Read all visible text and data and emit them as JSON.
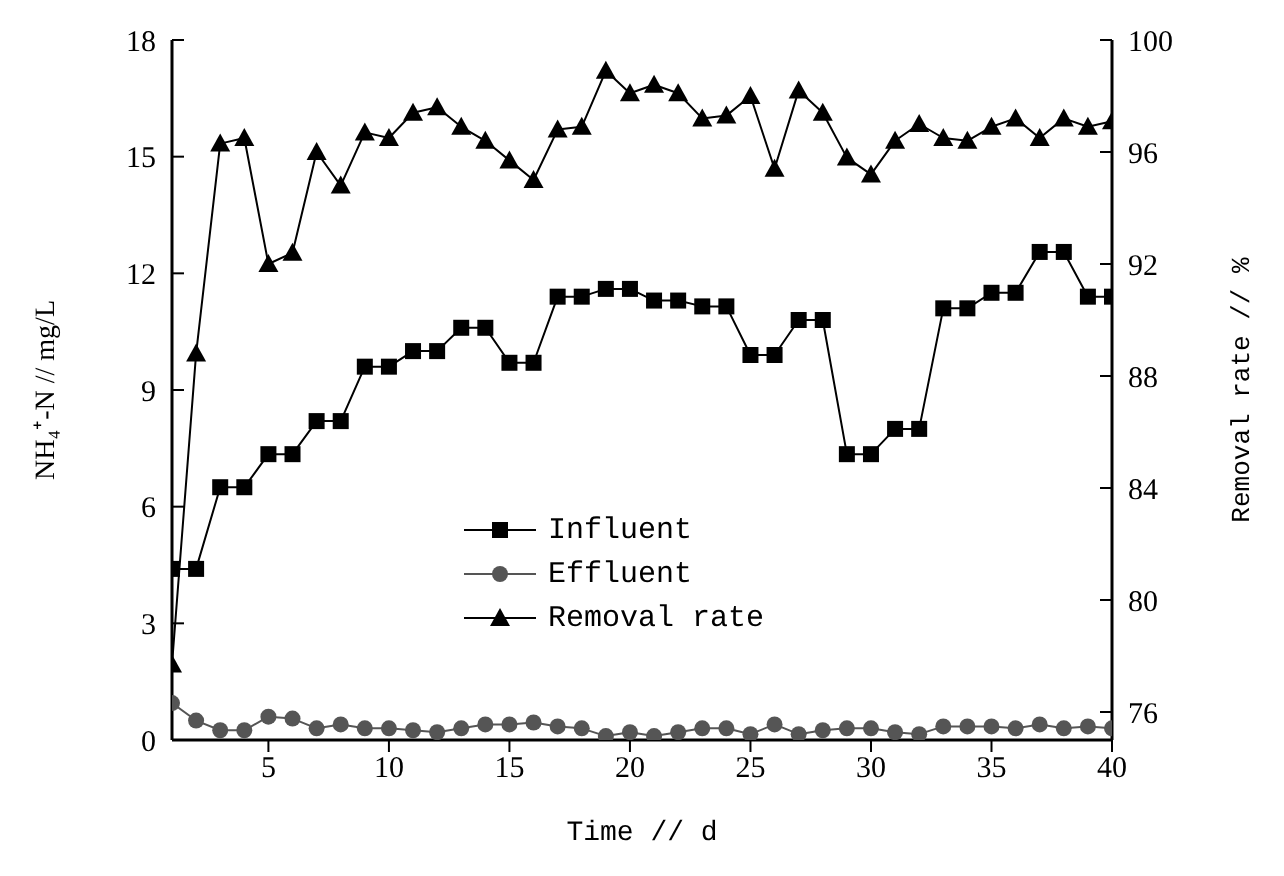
{
  "chart_data": {
    "type": "line",
    "xlabel": "Time // d",
    "ylabel": "NH₄⁺-N // mg/L",
    "y2label": "Removal rate // %",
    "x": [
      1,
      2,
      3,
      4,
      5,
      6,
      7,
      8,
      9,
      10,
      11,
      12,
      13,
      14,
      15,
      16,
      17,
      18,
      19,
      20,
      21,
      22,
      23,
      24,
      25,
      26,
      27,
      28,
      29,
      30,
      31,
      32,
      33,
      34,
      35,
      36,
      37,
      38,
      39,
      40
    ],
    "series": [
      {
        "name": "Influent",
        "color": "#000000",
        "marker": "square",
        "values": [
          4.4,
          4.4,
          6.5,
          6.5,
          7.35,
          7.35,
          8.2,
          8.2,
          9.6,
          9.6,
          10.0,
          10.0,
          10.6,
          10.6,
          9.7,
          9.7,
          11.4,
          11.4,
          11.6,
          11.6,
          11.3,
          11.3,
          11.15,
          11.15,
          9.9,
          9.9,
          10.8,
          10.8,
          7.35,
          7.35,
          8.0,
          8.0,
          11.1,
          11.1,
          11.5,
          11.5,
          12.55,
          12.55,
          11.4,
          11.4
        ]
      },
      {
        "name": "Effluent",
        "color": "#555555",
        "marker": "circle",
        "values": [
          0.95,
          0.5,
          0.25,
          0.25,
          0.6,
          0.55,
          0.3,
          0.4,
          0.3,
          0.3,
          0.25,
          0.2,
          0.3,
          0.4,
          0.4,
          0.45,
          0.35,
          0.3,
          0.1,
          0.2,
          0.1,
          0.2,
          0.3,
          0.3,
          0.15,
          0.4,
          0.15,
          0.25,
          0.3,
          0.3,
          0.2,
          0.15,
          0.35,
          0.35,
          0.35,
          0.3,
          0.4,
          0.3,
          0.35,
          0.3
        ]
      },
      {
        "name": "Removal rate",
        "color": "#000000",
        "marker": "triangle",
        "axis": "y2",
        "values": [
          77.7,
          88.8,
          96.3,
          96.5,
          92.0,
          92.4,
          96.0,
          94.8,
          96.7,
          96.5,
          97.4,
          97.6,
          96.9,
          96.4,
          95.7,
          95.0,
          96.8,
          96.9,
          98.9,
          98.1,
          98.4,
          98.1,
          97.2,
          97.3,
          98.0,
          95.4,
          98.2,
          97.4,
          95.8,
          95.2,
          96.4,
          97.0,
          96.5,
          96.4,
          96.9,
          97.2,
          96.5,
          97.2,
          96.9,
          97.1
        ]
      }
    ],
    "xlim": [
      1,
      40
    ],
    "xticks": [
      5,
      10,
      15,
      20,
      25,
      30,
      35,
      40
    ],
    "ylim": [
      0,
      18
    ],
    "yticks": [
      0,
      3,
      6,
      9,
      12,
      15,
      18
    ],
    "y2lim": [
      75,
      100
    ],
    "y2ticks": [
      76,
      80,
      84,
      88,
      92,
      96,
      100
    ],
    "grid": false,
    "legend": "bottom",
    "line_style": "solid"
  }
}
